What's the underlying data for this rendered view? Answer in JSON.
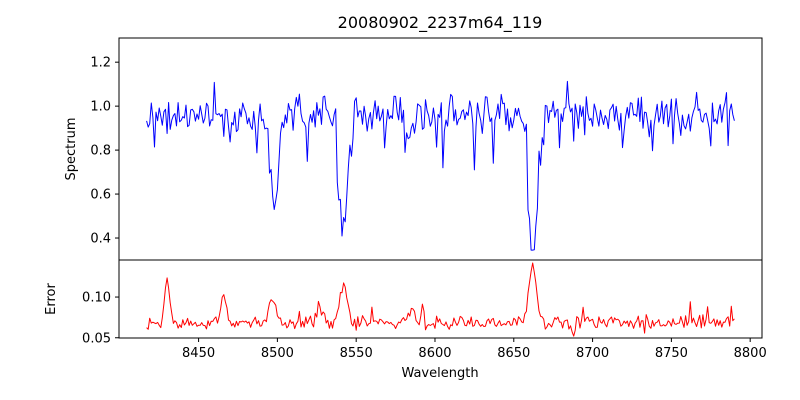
{
  "chart_data": {
    "type": "line",
    "title": "20080902_2237m64_119",
    "xlabel": "Wavelength",
    "xlim": [
      8399.5,
      8807.5
    ],
    "xtick_values": [
      8450,
      8500,
      8550,
      8600,
      8650,
      8700,
      8750,
      8800
    ],
    "xtick_labels": [
      "8450",
      "8500",
      "8550",
      "8600",
      "8650",
      "8700",
      "8750",
      "8800"
    ],
    "grid": false,
    "legend": "none",
    "panels": [
      {
        "name": "spectrum",
        "ylabel": "Spectrum",
        "ylim": [
          0.3,
          1.31
        ],
        "ytick_values": [
          0.4,
          0.6,
          0.8,
          1.0,
          1.2
        ],
        "ytick_labels": [
          "0.4",
          "0.6",
          "0.8",
          "1.0",
          "1.2"
        ],
        "line_color": "#0000ff"
      },
      {
        "name": "error",
        "ylabel": "Error",
        "ylim": [
          0.0497,
          0.1455
        ],
        "ytick_values": [
          0.05,
          0.1
        ],
        "ytick_labels": [
          "0.05",
          "0.10"
        ],
        "line_color": "#ff0000"
      }
    ],
    "series": [
      {
        "name": "spectrum",
        "panel": 0,
        "color": "#0000ff",
        "x_start": 8417,
        "x_end": 8790,
        "x_step": 1,
        "seed": 1234567,
        "baseline": 0.955,
        "noise": 0.11,
        "down_prob": 0.085,
        "down_min": 0.05,
        "down_var": 0.17,
        "up_prob": 0.045,
        "up_min": 0.04,
        "up_var": 0.13,
        "clip": [
          0.345,
          1.262
        ],
        "features": [
          {
            "center": 8498,
            "width": 2.6,
            "amp": -0.4
          },
          {
            "center": 8542,
            "width": 2.9,
            "amp": -0.52
          },
          {
            "center": 8662,
            "width": 2.9,
            "amp": -0.6
          }
        ]
      },
      {
        "name": "error",
        "panel": 1,
        "color": "#ff0000",
        "x_start": 8417,
        "x_end": 8790,
        "x_step": 1,
        "seed": 424242,
        "baseline": 0.0685,
        "noise": 0.0095,
        "down_prob": 0.03,
        "down_min": 0.003,
        "down_var": 0.009,
        "up_prob": 0.06,
        "up_min": 0.005,
        "up_var": 0.02,
        "clip": [
          0.052,
          0.1418
        ],
        "features": [
          {
            "center": 8430,
            "width": 1.6,
            "amp": 0.047
          },
          {
            "center": 8466,
            "width": 2.0,
            "amp": 0.027
          },
          {
            "center": 8497,
            "width": 2.4,
            "amp": 0.026
          },
          {
            "center": 8527,
            "width": 1.8,
            "amp": 0.017
          },
          {
            "center": 8542,
            "width": 2.4,
            "amp": 0.043
          },
          {
            "center": 8585,
            "width": 2.2,
            "amp": 0.018
          },
          {
            "center": 8662,
            "width": 2.4,
            "amp": 0.07
          },
          {
            "center": 8688,
            "width": 1.0,
            "amp": -0.0155
          }
        ]
      }
    ],
    "colors": {
      "background": "#ffffff",
      "frame": "#000000",
      "text": "#000000",
      "spectrum_line": "#0000ff",
      "error_line": "#ff0000"
    }
  }
}
